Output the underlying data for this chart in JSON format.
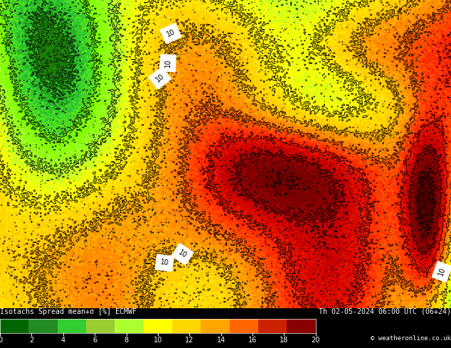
{
  "title_left": "Isotachs Spread mean+σ [%] ECMWF",
  "title_right": "Th 02-05-2024 06:00 UTC (06+24)",
  "credit": "© weatheronline.co.uk",
  "colorbar_ticks": [
    0,
    2,
    4,
    6,
    8,
    10,
    12,
    14,
    16,
    18,
    20
  ],
  "cbar_colors": [
    "#006400",
    "#228B22",
    "#32CD32",
    "#9ACD32",
    "#ADFF2F",
    "#FFFF00",
    "#FFD700",
    "#FFA500",
    "#FF6600",
    "#CC2200",
    "#880000"
  ],
  "map_colors": [
    "#006400",
    "#1a7a00",
    "#32CD32",
    "#7FFF00",
    "#ADFF2F",
    "#FFFF00",
    "#FFD700",
    "#FFA500",
    "#FF6600",
    "#FF2200",
    "#CC0000",
    "#880000",
    "#550000",
    "#2D0000"
  ],
  "figsize": [
    6.34,
    4.9
  ],
  "dpi": 100
}
